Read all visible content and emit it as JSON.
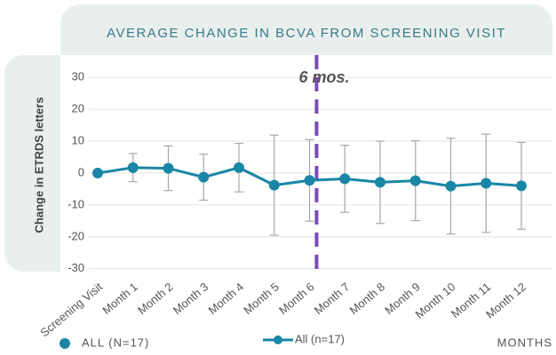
{
  "chart_data": {
    "type": "line",
    "title": "AVERAGE CHANGE IN BCVA FROM SCREENING VISIT",
    "y_label": "Change in ETRDS letters",
    "x_label": "MONTHS",
    "legend_label": "ALL (N=17)",
    "annotation": "6 mos.",
    "categories": [
      "Screening Visit",
      "Month 1",
      "Month 2",
      "Month 3",
      "Month 4",
      "Month 5",
      "Month 6",
      "Month 7",
      "Month 8",
      "Month 9",
      "Month 10",
      "Month 11",
      "Month 12"
    ],
    "series": [
      {
        "name": "All (n=17)",
        "color": "#1a86a6",
        "values": [
          0,
          1.7,
          1.5,
          -1.3,
          1.7,
          -3.8,
          -2.3,
          -1.8,
          -2.9,
          -2.4,
          -4.1,
          -3.2,
          -4.0
        ],
        "errors": [
          null,
          4.4,
          7,
          7.2,
          7.6,
          15.7,
          12.8,
          10.5,
          12.9,
          12.5,
          15,
          15.4,
          13.6
        ]
      }
    ],
    "ylim": [
      -32,
      37
    ],
    "yticks": [
      -30,
      -20,
      -10,
      0,
      10,
      20,
      30
    ],
    "grid": true
  }
}
